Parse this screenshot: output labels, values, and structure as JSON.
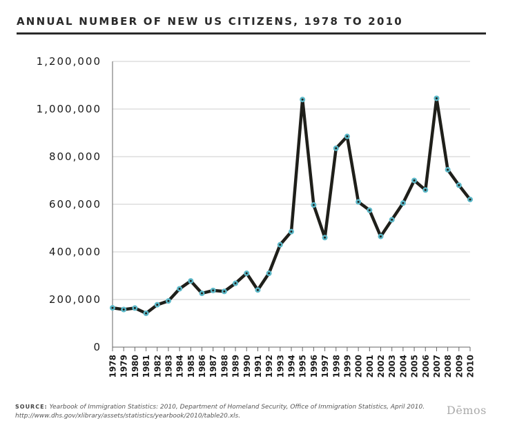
{
  "header": {
    "title": "ANNUAL NUMBER OF NEW US CITIZENS, 1978 TO 2010"
  },
  "footer": {
    "source_label": "SOURCE:",
    "source_text": "Yearbook of Immigration Statistics: 2010, Department of Homeland Security, Office of Immigration Statistics, April 2010.",
    "source_url": "http://www.dhs.gov/xlibrary/assets/statistics/yearbook/2010/table20.xls.",
    "logo": "Dēmos"
  },
  "colors": {
    "line": "#1f1f1a",
    "marker_fill": "#5bb8c8",
    "marker_center": "#1f1f1a",
    "grid": "#cccccc"
  },
  "chart_data": {
    "type": "line",
    "title": "ANNUAL NUMBER OF NEW US CITIZENS, 1978 TO 2010",
    "xlabel": "",
    "ylabel": "",
    "ylim": [
      0,
      1200000
    ],
    "yticks": [
      "0",
      "200,000",
      "400,000",
      "600,000",
      "800,000",
      "1,000,000",
      "1,200,000"
    ],
    "ytick_values": [
      0,
      200000,
      400000,
      600000,
      800000,
      1000000,
      1200000
    ],
    "grid": true,
    "legend": "none",
    "x": [
      "1978",
      "1979",
      "1980",
      "1981",
      "1982",
      "1983",
      "1984",
      "1985",
      "1986",
      "1987",
      "1988",
      "1989",
      "1990",
      "1991",
      "1992",
      "1993",
      "1994",
      "1995",
      "1996",
      "1997",
      "1998",
      "1999",
      "2000",
      "2001",
      "2002",
      "2003",
      "2004",
      "2005",
      "2006",
      "2007",
      "2008",
      "2009",
      "2010"
    ],
    "series": [
      {
        "values": [
          165000,
          158000,
          164000,
          142000,
          178000,
          194000,
          245000,
          278000,
          226000,
          238000,
          234000,
          268000,
          310000,
          240000,
          310000,
          430000,
          485000,
          1040000,
          597000,
          460000,
          835000,
          885000,
          610000,
          575000,
          465000,
          535000,
          605000,
          700000,
          660000,
          1045000,
          745000,
          680000,
          620000
        ]
      }
    ]
  }
}
